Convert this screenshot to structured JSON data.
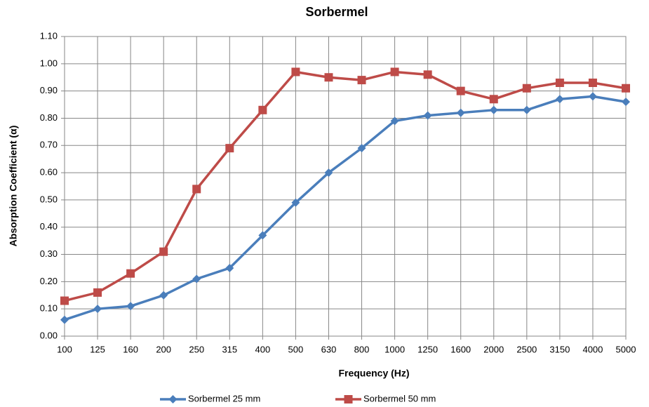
{
  "chart_data": {
    "type": "line",
    "title": "Sorbermel",
    "x_label": "Frequency (Hz)",
    "y_label": "Absorption Coefficient (α)",
    "categories": [
      "100",
      "125",
      "160",
      "200",
      "250",
      "315",
      "400",
      "500",
      "630",
      "800",
      "1000",
      "1250",
      "1600",
      "2000",
      "2500",
      "3150",
      "4000",
      "5000"
    ],
    "series": [
      {
        "name": "Sorbermel 25 mm",
        "color": "#4a7ebb",
        "marker": "diamond",
        "values": [
          0.06,
          0.1,
          0.11,
          0.15,
          0.21,
          0.25,
          0.37,
          0.49,
          0.6,
          0.69,
          0.79,
          0.81,
          0.82,
          0.83,
          0.83,
          0.87,
          0.88,
          0.86
        ]
      },
      {
        "name": "Sorbermel 50 mm",
        "color": "#be4b48",
        "marker": "square",
        "values": [
          0.13,
          0.16,
          0.23,
          0.31,
          0.54,
          0.69,
          0.83,
          0.97,
          0.95,
          0.94,
          0.97,
          0.96,
          0.9,
          0.87,
          0.91,
          0.93,
          0.93,
          0.91
        ]
      }
    ],
    "ylim": [
      0,
      1.1
    ],
    "yticks": [
      {
        "value": 0,
        "label": "0.00"
      },
      {
        "value": 0.1,
        "label": "0.10"
      },
      {
        "value": 0.2,
        "label": "0.20"
      },
      {
        "value": 0.3,
        "label": "0.30"
      },
      {
        "value": 0.4,
        "label": "0.40"
      },
      {
        "value": 0.5,
        "label": "0.50"
      },
      {
        "value": 0.6,
        "label": "0.60"
      },
      {
        "value": 0.7,
        "label": "0.70"
      },
      {
        "value": 0.8,
        "label": "0.80"
      },
      {
        "value": 0.9,
        "label": "0.90"
      },
      {
        "value": 1.0,
        "label": "1.00"
      },
      {
        "value": 1.1,
        "label": "1.10"
      }
    ],
    "grid": true,
    "legend": "bottom"
  }
}
